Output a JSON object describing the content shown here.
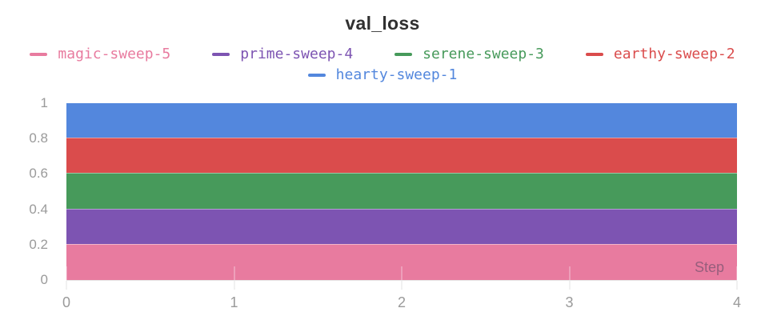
{
  "chart_data": {
    "type": "area",
    "title": "val_loss",
    "xlabel": "Step",
    "x": [
      0,
      1,
      2,
      3,
      4
    ],
    "xlim": [
      0,
      4
    ],
    "ylim": [
      0,
      1
    ],
    "x_ticks": [
      "0",
      "1",
      "2",
      "3",
      "4"
    ],
    "y_ticks": [
      "0",
      "0.2",
      "0.4",
      "0.6",
      "0.8",
      "1"
    ],
    "grid": "off",
    "legend_position": "top",
    "series": [
      {
        "name": "magic-sweep-5",
        "color": "#E87B9F",
        "values": [
          0.2,
          0.2,
          0.2,
          0.2,
          0.2
        ]
      },
      {
        "name": "prime-sweep-4",
        "color": "#7D54B2",
        "values": [
          0.4,
          0.4,
          0.4,
          0.4,
          0.4
        ]
      },
      {
        "name": "serene-sweep-3",
        "color": "#479A5B",
        "values": [
          0.6,
          0.6,
          0.6,
          0.6,
          0.6
        ]
      },
      {
        "name": "earthy-sweep-2",
        "color": "#DA4C4C",
        "values": [
          0.8,
          0.8,
          0.8,
          0.8,
          0.8
        ]
      },
      {
        "name": "hearty-sweep-1",
        "color": "#5387DD",
        "values": [
          1,
          1,
          1,
          1,
          1
        ]
      }
    ],
    "legend_rows": [
      [
        "magic-sweep-5",
        "prime-sweep-4",
        "serene-sweep-3",
        "earthy-sweep-2"
      ],
      [
        "hearty-sweep-1"
      ]
    ]
  },
  "colors": {
    "title_text": "#303030",
    "tick_label": "#9a9a9a",
    "axis_line": "#e6e6e6"
  }
}
